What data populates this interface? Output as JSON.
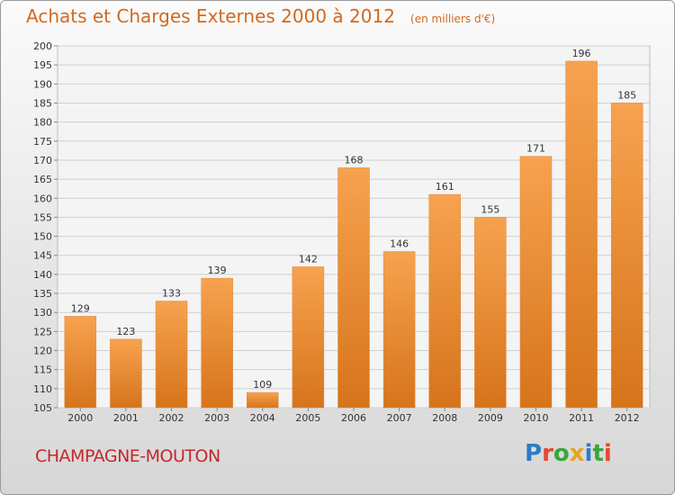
{
  "header": {
    "title": "Achats et Charges Externes 2000 à 2012",
    "subtitle": "(en milliers d'€)"
  },
  "footer": {
    "place": "CHAMPAGNE-MOUTON",
    "logo_text": "Proxiti"
  },
  "colors": {
    "bar_top": "#f7a24f",
    "bar_bottom": "#d6741c",
    "accent": "#d2691e",
    "place": "#c62828"
  },
  "chart_data": {
    "type": "bar",
    "categories": [
      "2000",
      "2001",
      "2002",
      "2003",
      "2004",
      "2005",
      "2006",
      "2007",
      "2008",
      "2009",
      "2010",
      "2011",
      "2012"
    ],
    "values": [
      129,
      123,
      133,
      139,
      109,
      142,
      168,
      146,
      161,
      155,
      171,
      196,
      185
    ],
    "title": "Achats et Charges Externes 2000 à 2012",
    "subtitle": "(en milliers d'€)",
    "ylim": [
      105,
      200
    ],
    "yticks": [
      105,
      110,
      115,
      120,
      125,
      130,
      135,
      140,
      145,
      150,
      155,
      160,
      165,
      170,
      175,
      180,
      185,
      190,
      195,
      200
    ],
    "grid": true
  }
}
